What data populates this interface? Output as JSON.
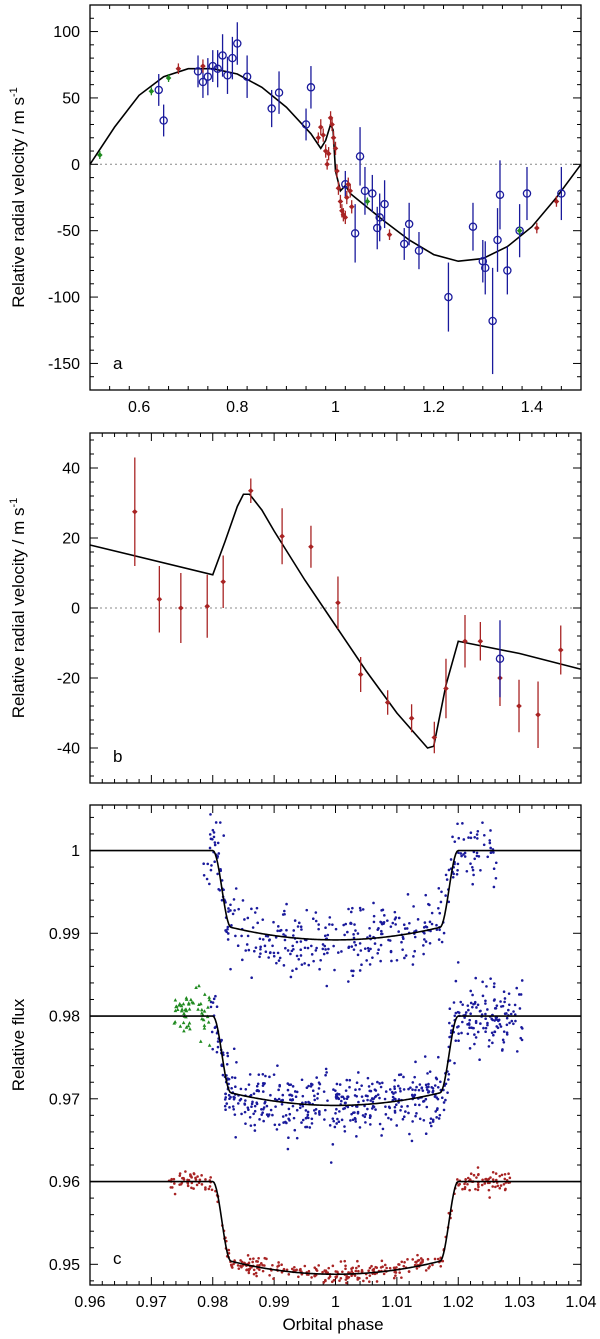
{
  "colors": {
    "blue": "#1a1a9c",
    "red": "#a82424",
    "green": "#1f8a1f",
    "black": "#000000",
    "zero": "#888888"
  },
  "xlabel_bottom": "Orbital phase",
  "chart_data": [
    {
      "type": "scatter",
      "panel_label": "a",
      "ylabel": "Relative radial velocity / m s",
      "ylabel_sup": "-1",
      "xlim": [
        0.5,
        1.5
      ],
      "ylim": [
        -170,
        120
      ],
      "xticks": [
        0.6,
        0.8,
        1,
        1.2,
        1.4
      ],
      "xtick_labels": [
        "0.6",
        "0.8",
        "1",
        "1.2",
        "1.4"
      ],
      "yticks": [
        -150,
        -100,
        -50,
        0,
        50,
        100
      ],
      "ytick_labels": [
        "-150",
        "-100",
        "-50",
        "0",
        "50",
        "100"
      ],
      "zero_line": 0,
      "series": [
        {
          "name": "blue-circles",
          "marker": "circle",
          "color": "blue",
          "points": [
            [
              0.64,
              56,
              12
            ],
            [
              0.65,
              33,
              12
            ],
            [
              0.72,
              70,
              12
            ],
            [
              0.73,
              62,
              12
            ],
            [
              0.74,
              66,
              14
            ],
            [
              0.75,
              74,
              12
            ],
            [
              0.76,
              72,
              14
            ],
            [
              0.77,
              82,
              16
            ],
            [
              0.78,
              67,
              14
            ],
            [
              0.79,
              80,
              16
            ],
            [
              0.8,
              91,
              16
            ],
            [
              0.82,
              66,
              16
            ],
            [
              0.87,
              42,
              14
            ],
            [
              0.885,
              54,
              16
            ],
            [
              0.94,
              30,
              12
            ],
            [
              0.95,
              58,
              16
            ],
            [
              1.02,
              -15,
              10
            ],
            [
              1.04,
              -52,
              22
            ],
            [
              1.05,
              6,
              22
            ],
            [
              1.06,
              -20,
              18
            ],
            [
              1.075,
              -22,
              14
            ],
            [
              1.085,
              -48,
              16
            ],
            [
              1.09,
              -40,
              18
            ],
            [
              1.1,
              -30,
              18
            ],
            [
              1.14,
              -60,
              12
            ],
            [
              1.15,
              -45,
              16
            ],
            [
              1.17,
              -65,
              14
            ],
            [
              1.23,
              -100,
              26
            ],
            [
              1.28,
              -47,
              18
            ],
            [
              1.3,
              -73,
              16
            ],
            [
              1.305,
              -78,
              20
            ],
            [
              1.32,
              -118,
              40
            ],
            [
              1.33,
              -57,
              24
            ],
            [
              1.335,
              -23,
              26
            ],
            [
              1.35,
              -80,
              18
            ],
            [
              1.375,
              -50,
              20
            ],
            [
              1.39,
              -22,
              20
            ],
            [
              1.46,
              -22,
              20
            ]
          ]
        },
        {
          "name": "red-diamonds",
          "marker": "diamond",
          "color": "red",
          "points": [
            [
              0.68,
              72,
              4
            ],
            [
              0.73,
              74,
              5
            ],
            [
              0.965,
              20,
              4
            ],
            [
              0.97,
              28,
              6
            ],
            [
              0.975,
              22,
              5
            ],
            [
              0.98,
              10,
              5
            ],
            [
              0.983,
              0,
              4
            ],
            [
              0.986,
              8,
              5
            ],
            [
              0.99,
              35,
              5
            ],
            [
              0.993,
              30,
              5
            ],
            [
              0.996,
              20,
              5
            ],
            [
              1.0,
              12,
              5
            ],
            [
              1.003,
              -5,
              5
            ],
            [
              1.006,
              -18,
              5
            ],
            [
              1.01,
              -28,
              5
            ],
            [
              1.013,
              -35,
              5
            ],
            [
              1.016,
              -38,
              5
            ],
            [
              1.02,
              -40,
              5
            ],
            [
              1.023,
              -25,
              5
            ],
            [
              1.026,
              -15,
              5
            ],
            [
              1.03,
              -20,
              5
            ],
            [
              1.033,
              -32,
              5
            ],
            [
              1.11,
              -53,
              4
            ],
            [
              1.41,
              -48,
              4
            ],
            [
              1.45,
              -28,
              4
            ]
          ]
        },
        {
          "name": "green-diamonds",
          "marker": "diamond",
          "color": "green",
          "points": [
            [
              0.52,
              7,
              3
            ],
            [
              0.625,
              55,
              3
            ],
            [
              0.66,
              65,
              3
            ],
            [
              1.065,
              -28,
              3
            ],
            [
              1.375,
              -50,
              3
            ]
          ]
        }
      ],
      "model": [
        [
          0.5,
          0
        ],
        [
          0.55,
          28
        ],
        [
          0.6,
          52
        ],
        [
          0.65,
          66
        ],
        [
          0.7,
          72
        ],
        [
          0.75,
          72
        ],
        [
          0.8,
          68
        ],
        [
          0.85,
          58
        ],
        [
          0.9,
          43
        ],
        [
          0.95,
          23
        ],
        [
          0.97,
          12
        ],
        [
          0.98,
          18
        ],
        [
          0.99,
          30
        ],
        [
          0.995,
          26
        ],
        [
          1.0,
          -5
        ],
        [
          1.01,
          -20
        ],
        [
          1.02,
          -16
        ],
        [
          1.03,
          -22
        ],
        [
          1.05,
          -28
        ],
        [
          1.1,
          -43
        ],
        [
          1.15,
          -57
        ],
        [
          1.2,
          -68
        ],
        [
          1.25,
          -73
        ],
        [
          1.3,
          -71
        ],
        [
          1.35,
          -62
        ],
        [
          1.4,
          -47
        ],
        [
          1.45,
          -25
        ],
        [
          1.5,
          0
        ]
      ]
    },
    {
      "type": "scatter",
      "panel_label": "b",
      "ylabel": "Relative radial velocity / m s",
      "ylabel_sup": "-1",
      "xlim": [
        0.96,
        1.04
      ],
      "ylim": [
        -50,
        50
      ],
      "xticks": [
        0.96,
        0.97,
        0.98,
        0.99,
        1.0,
        1.01,
        1.02,
        1.03,
        1.04
      ],
      "yticks": [
        -40,
        -20,
        0,
        20,
        40
      ],
      "ytick_labels": [
        "-40",
        "-20",
        "0",
        "20",
        "40"
      ],
      "zero_line": 0,
      "series": [
        {
          "name": "red-diamonds",
          "marker": "diamond",
          "color": "red",
          "points": [
            [
              0.9673,
              27.5,
              15.5
            ],
            [
              0.9713,
              2.5,
              9.5
            ],
            [
              0.9748,
              0,
              10
            ],
            [
              0.9791,
              0.5,
              9
            ],
            [
              0.9817,
              7.5,
              7.5
            ],
            [
              0.9862,
              33.5,
              3.5
            ],
            [
              0.9913,
              20.5,
              8
            ],
            [
              0.996,
              17.5,
              6
            ],
            [
              1.0004,
              1.5,
              7.5
            ],
            [
              1.0041,
              -19,
              5
            ],
            [
              1.0085,
              -27,
              3.5
            ],
            [
              1.0124,
              -31.5,
              4
            ],
            [
              1.0161,
              -37,
              4.5
            ],
            [
              1.018,
              -23,
              8.5
            ],
            [
              1.0211,
              -9.5,
              7.5
            ],
            [
              1.0236,
              -9.5,
              5.5
            ],
            [
              1.0268,
              -20,
              8
            ],
            [
              1.0299,
              -28,
              7.5
            ],
            [
              1.033,
              -30.5,
              9.5
            ],
            [
              1.0367,
              -12,
              7
            ]
          ]
        },
        {
          "name": "blue-circle",
          "marker": "circle",
          "color": "blue",
          "points": [
            [
              1.0268,
              -14.5,
              11
            ]
          ]
        }
      ],
      "model": [
        [
          0.96,
          18
        ],
        [
          0.98,
          9.5
        ],
        [
          0.982,
          19
        ],
        [
          0.984,
          29
        ],
        [
          0.985,
          32.5
        ],
        [
          0.986,
          32.5
        ],
        [
          0.988,
          28
        ],
        [
          0.99,
          22
        ],
        [
          0.995,
          8
        ],
        [
          1.0,
          -5
        ],
        [
          1.005,
          -18
        ],
        [
          1.01,
          -30
        ],
        [
          1.014,
          -38
        ],
        [
          1.015,
          -40
        ],
        [
          1.016,
          -39.5
        ],
        [
          1.018,
          -22
        ],
        [
          1.02,
          -9.5
        ],
        [
          1.03,
          -13
        ],
        [
          1.04,
          -17.5
        ]
      ]
    },
    {
      "type": "scatter",
      "panel_label": "c",
      "ylabel": "Relative flux",
      "xlabel": "Orbital phase",
      "xlim": [
        0.96,
        1.04
      ],
      "ylim": [
        0.9475,
        1.0055
      ],
      "xticks": [
        0.96,
        0.97,
        0.98,
        0.99,
        1.0,
        1.01,
        1.02,
        1.03,
        1.04
      ],
      "xtick_labels": [
        "0.96",
        "0.97",
        "0.98",
        "0.99",
        "1",
        "1.01",
        "1.02",
        "1.03",
        "1.04"
      ],
      "yticks": [
        0.95,
        0.96,
        0.97,
        0.98,
        0.99,
        1.0
      ],
      "ytick_labels": [
        "0.95",
        "0.96",
        "0.97",
        "0.98",
        "0.99",
        "1"
      ],
      "transits": [
        {
          "name": "blue-upper",
          "color": "blue",
          "marker": "dot",
          "baseline": 1.0,
          "depth": 0.0108,
          "x_range": [
            0.9785,
            1.0262
          ],
          "scatter": 0.0022,
          "n": 380,
          "seed": 11
        },
        {
          "name": "blue-middle",
          "color": "blue",
          "marker": "dot",
          "baseline": 0.98,
          "depth": 0.0108,
          "x_range": [
            0.9795,
            1.0305
          ],
          "scatter": 0.0019,
          "n": 620,
          "seed": 23
        },
        {
          "name": "green-pre",
          "color": "green",
          "marker": "triangle",
          "baseline": 0.98,
          "depth": 0.0108,
          "x_range": [
            0.9735,
            0.9795
          ],
          "scatter": 0.0015,
          "n": 55,
          "seed": 37
        },
        {
          "name": "red-lower",
          "color": "red",
          "marker": "dot",
          "baseline": 0.96,
          "depth": 0.0112,
          "x_range": [
            0.9725,
            1.0285
          ],
          "scatter": 0.0006,
          "n": 380,
          "seed": 41
        }
      ],
      "model_contact": {
        "t1": 0.98,
        "t2": 0.983,
        "t3": 1.017,
        "t4": 1.02
      }
    }
  ]
}
